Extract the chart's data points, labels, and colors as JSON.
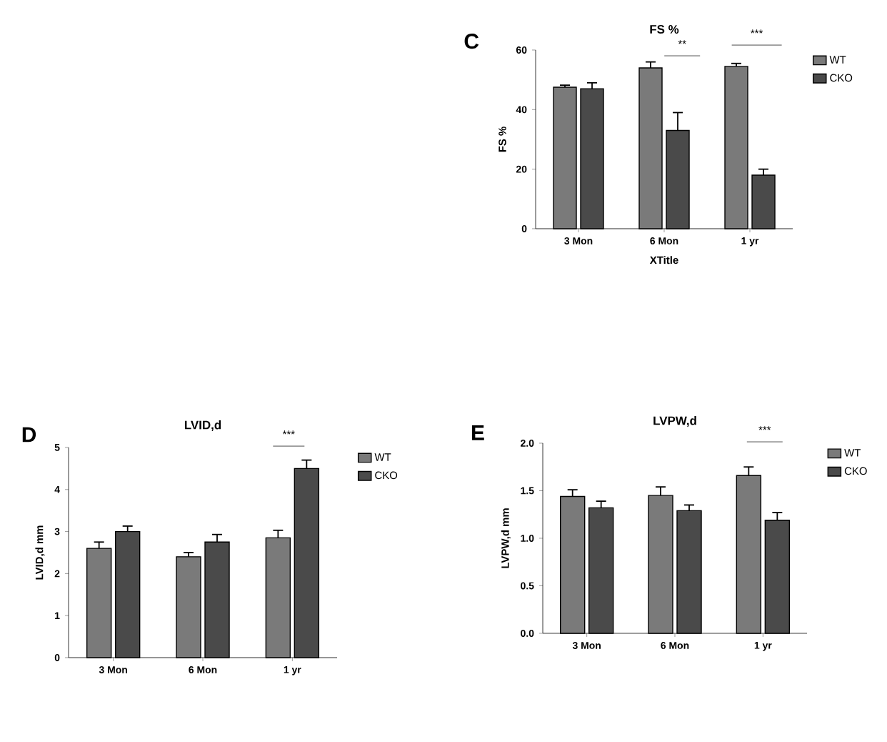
{
  "chart_data": [
    {
      "type": "bar",
      "title": "FS %",
      "ylabel": "FS %",
      "xlabel": "XTitle",
      "categories": [
        "3 Mon",
        "6 Mon",
        "1 yr"
      ],
      "series": [
        {
          "name": "WT",
          "color": "#7a7a7a",
          "values": [
            47.5,
            54,
            54.5
          ],
          "errors": [
            0.7,
            2,
            1
          ]
        },
        {
          "name": "CKO",
          "color": "#4a4a4a",
          "values": [
            47,
            33,
            18
          ],
          "errors": [
            2,
            6,
            2
          ]
        }
      ],
      "ylim": [
        0,
        60
      ],
      "yticks": [
        0,
        20,
        40,
        60
      ],
      "legend": "right",
      "annotations": [
        "C",
        "**",
        "***"
      ]
    },
    {
      "type": "bar",
      "title": "LVID,d",
      "ylabel": "LVID,d mm",
      "categories": [
        "3 Mon",
        "6 Mon",
        "1 yr"
      ],
      "series": [
        {
          "name": "WT",
          "color": "#7a7a7a",
          "values": [
            2.6,
            2.4,
            2.85
          ],
          "errors": [
            0.15,
            0.1,
            0.18
          ]
        },
        {
          "name": "CKO",
          "color": "#4a4a4a",
          "values": [
            3.0,
            2.75,
            4.5
          ],
          "errors": [
            0.13,
            0.18,
            0.2
          ]
        }
      ],
      "ylim": [
        0,
        5
      ],
      "yticks": [
        0,
        1,
        2,
        3,
        4,
        5
      ],
      "legend": "right",
      "annotations": [
        "D",
        "***"
      ]
    },
    {
      "type": "bar",
      "title": "LVPW,d",
      "ylabel": "LVPW,d mm",
      "categories": [
        "3 Mon",
        "6 Mon",
        "1 yr"
      ],
      "series": [
        {
          "name": "WT",
          "color": "#7a7a7a",
          "values": [
            1.44,
            1.45,
            1.66
          ],
          "errors": [
            0.07,
            0.09,
            0.09
          ]
        },
        {
          "name": "CKO",
          "color": "#4a4a4a",
          "values": [
            1.32,
            1.29,
            1.19
          ],
          "errors": [
            0.07,
            0.06,
            0.08
          ]
        }
      ],
      "ylim": [
        0,
        2.0
      ],
      "yticks": [
        {
          "value": 0,
          "label": "0.0"
        },
        {
          "value": 0.5,
          "label": "0.5"
        },
        {
          "value": 1.0,
          "label": "1.0"
        },
        {
          "value": 1.5,
          "label": "1.5"
        },
        {
          "value": 2.0,
          "label": "2.0"
        }
      ],
      "legend": "right",
      "annotations": [
        "E",
        "***"
      ]
    }
  ]
}
